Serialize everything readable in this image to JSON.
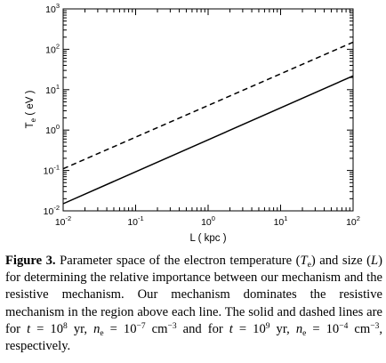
{
  "chart_data": {
    "type": "line",
    "xscale": "log",
    "yscale": "log",
    "xlabel": "L ( kpc )",
    "ylabel": "T_e ( eV )",
    "xlim": [
      0.01,
      100
    ],
    "ylim": [
      0.01,
      1000
    ],
    "x_tick_labels": [
      {
        "value": 0.01,
        "base": "10",
        "exp": "-2"
      },
      {
        "value": 0.1,
        "base": "10",
        "exp": "-1"
      },
      {
        "value": 1,
        "base": "10",
        "exp": "0"
      },
      {
        "value": 10,
        "base": "10",
        "exp": "1"
      },
      {
        "value": 100,
        "base": "10",
        "exp": "2"
      }
    ],
    "y_tick_labels": [
      {
        "value": 0.01,
        "base": "10",
        "exp": "-2"
      },
      {
        "value": 0.1,
        "base": "10",
        "exp": "-1"
      },
      {
        "value": 1,
        "base": "10",
        "exp": "0"
      },
      {
        "value": 10,
        "base": "10",
        "exp": "1"
      },
      {
        "value": 100,
        "base": "10",
        "exp": "2"
      },
      {
        "value": 1000,
        "base": "10",
        "exp": "3"
      }
    ],
    "series": [
      {
        "style": "solid",
        "x": [
          0.01,
          100
        ],
        "y": [
          0.015,
          22
        ]
      },
      {
        "style": "dashed",
        "x": [
          0.01,
          100
        ],
        "y": [
          0.11,
          150
        ]
      }
    ]
  },
  "caption": {
    "label": "Figure 3.",
    "text_1": " Parameter space of the electron temperature (",
    "T": "T",
    "e": "e",
    "text_2": ") and size (",
    "L": "L",
    "text_3": ") for determining the relative importance between our mechanism and the resistive mechanism. Our mechanism dominates the resistive mechanism in the region above each line. The solid and dashed lines are for ",
    "t": "t",
    "eq": " = 10",
    "exp_t1": "8",
    "yr_ne": " yr, ",
    "n": "n",
    "eq_10": " = 10",
    "exp_n1": "−7",
    "unit": " cm",
    "exp_cm": "−3",
    "and_for": " and for ",
    "exp_t2": "9",
    "exp_n2": "−4",
    "end": ", respectively."
  }
}
